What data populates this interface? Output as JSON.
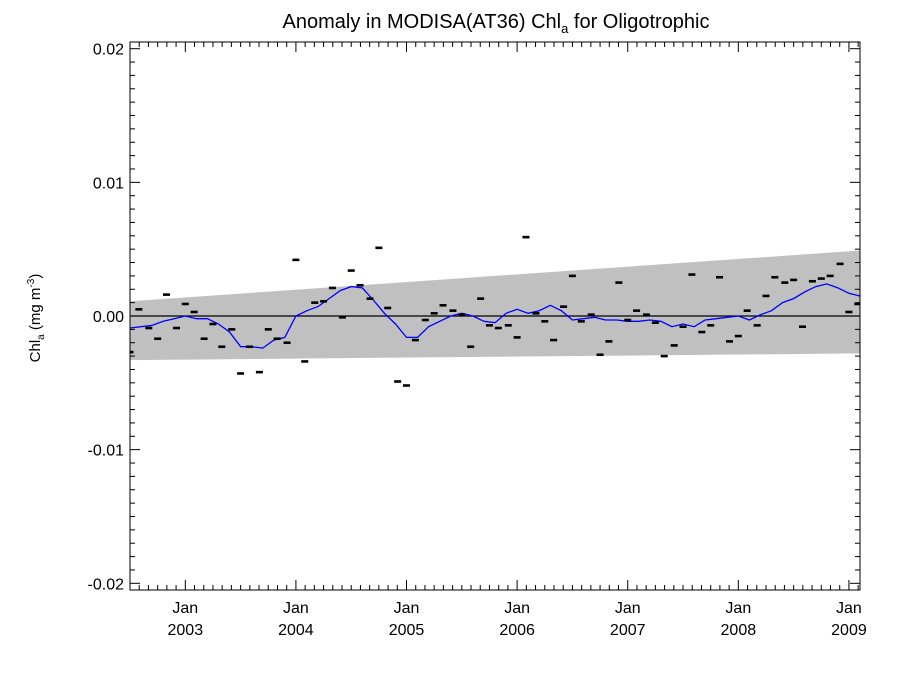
{
  "chart_data": {
    "type": "scatter",
    "title": "Anomaly in MODISA(AT36) Chl",
    "title_subscript": "a",
    "title_suffix": " for Oligotrophic",
    "ylabel_main": "Chl",
    "ylabel_sub": "a",
    "ylabel_rest": " (mg m",
    "ylabel_sup": "-3",
    "ylabel_close": ")",
    "xlim": [
      2002.5,
      2009.1
    ],
    "ylim": [
      -0.0205,
      0.0205
    ],
    "yticks": [
      {
        "value": 0.02,
        "label": "0.02"
      },
      {
        "value": 0.01,
        "label": "0.01"
      },
      {
        "value": 0.0,
        "label": "0.00"
      },
      {
        "value": -0.01,
        "label": "-0.01"
      },
      {
        "value": -0.02,
        "label": "-0.02"
      }
    ],
    "xticks": [
      {
        "value": 2003.0,
        "month": "Jan",
        "year": "2003"
      },
      {
        "value": 2004.0,
        "month": "Jan",
        "year": "2004"
      },
      {
        "value": 2005.0,
        "month": "Jan",
        "year": "2005"
      },
      {
        "value": 2006.0,
        "month": "Jan",
        "year": "2006"
      },
      {
        "value": 2007.0,
        "month": "Jan",
        "year": "2007"
      },
      {
        "value": 2008.0,
        "month": "Jan",
        "year": "2008"
      },
      {
        "value": 2009.0,
        "month": "Jan",
        "year": "2009"
      }
    ],
    "confidence_band": {
      "color": "#c0c0c0",
      "x": [
        2002.5,
        2009.1
      ],
      "upper": [
        0.0011,
        0.0049
      ],
      "lower": [
        -0.0033,
        -0.0028
      ]
    },
    "zero_line_color": "#000000",
    "monthly_points": {
      "color": "#000000",
      "x": [
        2002.5,
        2002.58,
        2002.67,
        2002.75,
        2002.83,
        2002.92,
        2003.0,
        2003.08,
        2003.17,
        2003.25,
        2003.33,
        2003.42,
        2003.5,
        2003.58,
        2003.67,
        2003.75,
        2003.83,
        2003.92,
        2004.0,
        2004.08,
        2004.17,
        2004.25,
        2004.33,
        2004.42,
        2004.5,
        2004.58,
        2004.67,
        2004.75,
        2004.83,
        2004.92,
        2005.0,
        2005.08,
        2005.17,
        2005.25,
        2005.33,
        2005.42,
        2005.5,
        2005.58,
        2005.67,
        2005.75,
        2005.83,
        2005.92,
        2006.0,
        2006.08,
        2006.17,
        2006.25,
        2006.33,
        2006.42,
        2006.5,
        2006.58,
        2006.67,
        2006.75,
        2006.83,
        2006.92,
        2007.0,
        2007.08,
        2007.17,
        2007.25,
        2007.33,
        2007.42,
        2007.5,
        2007.58,
        2007.67,
        2007.75,
        2007.83,
        2007.92,
        2008.0,
        2008.08,
        2008.17,
        2008.25,
        2008.33,
        2008.42,
        2008.5,
        2008.58,
        2008.67,
        2008.75,
        2008.83,
        2008.92,
        2009.0,
        2009.08
      ],
      "y": [
        -0.0027,
        0.0005,
        -0.0009,
        -0.0017,
        0.0016,
        -0.0009,
        0.0009,
        0.0003,
        -0.0017,
        -0.0006,
        -0.0023,
        -0.001,
        -0.0043,
        -0.0023,
        -0.0042,
        -0.001,
        -0.0017,
        -0.002,
        0.0042,
        -0.0034,
        0.001,
        0.0011,
        0.0021,
        -0.0001,
        0.0034,
        0.0023,
        0.0013,
        0.0051,
        0.0006,
        -0.0049,
        -0.0052,
        -0.0018,
        -0.0003,
        0.0002,
        0.0008,
        0.0004,
        0.0001,
        -0.0023,
        0.0013,
        -0.0007,
        -0.0009,
        -0.0007,
        -0.0016,
        0.0059,
        0.0002,
        -0.0004,
        -0.0018,
        0.0007,
        0.003,
        -0.0004,
        0.0001,
        -0.0029,
        -0.0019,
        0.0025,
        -0.0003,
        0.0004,
        0.0001,
        -0.0005,
        -0.003,
        -0.0022,
        -0.0008,
        0.0031,
        -0.0012,
        -0.0007,
        0.0029,
        -0.0019,
        -0.0015,
        0.0004,
        -0.0007,
        0.0015,
        0.0029,
        0.0025,
        0.0027,
        -0.0008,
        0.0026,
        0.0028,
        0.003,
        0.0039,
        0.0003,
        0.0009
      ]
    },
    "running_mean": {
      "color": "#0000ff",
      "x": [
        2002.5,
        2002.6,
        2002.7,
        2002.8,
        2002.9,
        2003.0,
        2003.1,
        2003.2,
        2003.3,
        2003.4,
        2003.5,
        2003.6,
        2003.7,
        2003.8,
        2003.9,
        2004.0,
        2004.1,
        2004.2,
        2004.3,
        2004.4,
        2004.5,
        2004.6,
        2004.7,
        2004.8,
        2004.9,
        2005.0,
        2005.1,
        2005.2,
        2005.3,
        2005.4,
        2005.5,
        2005.6,
        2005.7,
        2005.8,
        2005.9,
        2006.0,
        2006.1,
        2006.2,
        2006.3,
        2006.4,
        2006.5,
        2006.6,
        2006.7,
        2006.8,
        2006.9,
        2007.0,
        2007.1,
        2007.2,
        2007.3,
        2007.4,
        2007.5,
        2007.6,
        2007.7,
        2007.8,
        2007.9,
        2008.0,
        2008.1,
        2008.2,
        2008.3,
        2008.4,
        2008.5,
        2008.6,
        2008.7,
        2008.8,
        2008.9,
        2009.0,
        2009.1
      ],
      "y": [
        -0.0009,
        -0.0008,
        -0.0007,
        -0.0004,
        -0.0002,
        0.0,
        -0.0002,
        -0.0002,
        -0.0006,
        -0.0012,
        -0.0023,
        -0.0023,
        -0.0024,
        -0.0018,
        -0.0016,
        0.0,
        0.0004,
        0.0007,
        0.0013,
        0.0019,
        0.0022,
        0.0021,
        0.0012,
        0.0002,
        -0.0006,
        -0.0016,
        -0.0016,
        -0.0008,
        -0.0004,
        0.0,
        0.0002,
        0.0,
        -0.0004,
        -0.0005,
        0.0002,
        0.0005,
        0.0002,
        0.0004,
        0.0008,
        0.0004,
        -0.0003,
        -0.0002,
        -0.0001,
        -0.0003,
        -0.0003,
        -0.0004,
        -0.0004,
        -0.0003,
        -0.0004,
        -0.0008,
        -0.0006,
        -0.0008,
        -0.0003,
        -0.0002,
        -0.0001,
        0.0,
        -0.0003,
        0.0001,
        0.0004,
        0.001,
        0.0013,
        0.0018,
        0.0022,
        0.0024,
        0.0021,
        0.0017,
        0.0015
      ]
    }
  }
}
